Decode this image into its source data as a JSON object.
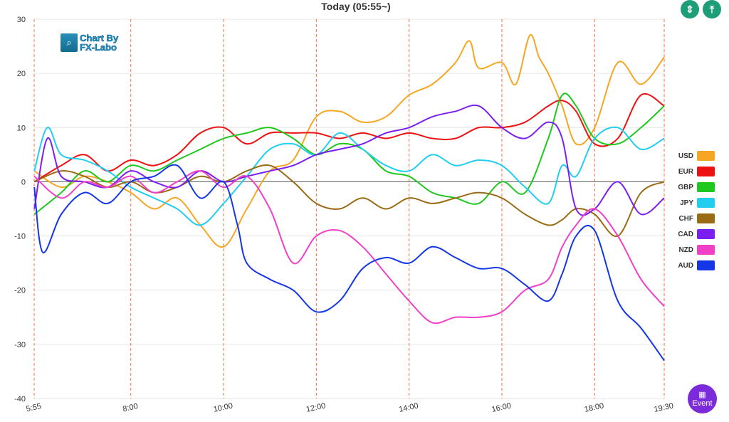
{
  "header": {
    "title": "Today  (05:55~)"
  },
  "logo": {
    "text_line1": "Chart By",
    "text_line2": "FX-Labo"
  },
  "controls": {
    "expand_icon": "expand-vertical-icon",
    "top_icon": "align-top-icon",
    "event_label": "Event",
    "event_icon": "calendar-icon"
  },
  "colors": {
    "USD": "#f5a623",
    "EUR": "#ee1111",
    "GBP": "#1ec81e",
    "JPY": "#22cdf0",
    "CHF": "#9a6b14",
    "CAD": "#7b1ff0",
    "NZD": "#f040c8",
    "AUD": "#1436e6"
  },
  "chart_data": {
    "type": "line",
    "x_ticks": [
      "5:55",
      "8:00",
      "10:00",
      "12:00",
      "14:00",
      "16:00",
      "18:00",
      "19:30"
    ],
    "x_tick_hours": [
      5.9167,
      8,
      10,
      12,
      14,
      16,
      18,
      19.5
    ],
    "xlim": [
      5.9167,
      19.5
    ],
    "ylim": [
      -40,
      30
    ],
    "y_ticks": [
      -40,
      -30,
      -20,
      -10,
      0,
      10,
      20,
      30
    ],
    "legend": [
      "USD",
      "EUR",
      "GBP",
      "JPY",
      "CHF",
      "CAD",
      "NZD",
      "AUD"
    ],
    "legend_position": "right",
    "series": [
      {
        "name": "USD",
        "x": [
          5.92,
          6.5,
          7,
          7.5,
          8,
          8.5,
          9,
          9.5,
          10,
          10.5,
          11,
          11.5,
          12,
          12.5,
          13,
          13.5,
          14,
          14.5,
          15,
          15.3,
          15.5,
          16,
          16.3,
          16.6,
          16.8,
          17,
          17.3,
          17.6,
          18,
          18.5,
          19,
          19.5
        ],
        "values": [
          2,
          -1,
          1,
          0,
          -2,
          -5,
          -3,
          -8,
          -12,
          -5,
          2,
          4,
          12,
          13,
          11,
          12,
          16,
          18,
          22,
          26,
          21,
          22,
          18,
          27,
          23,
          20,
          14,
          7,
          10,
          22,
          18,
          23
        ]
      },
      {
        "name": "EUR",
        "x": [
          5.92,
          6.5,
          7,
          7.5,
          8,
          8.5,
          9,
          9.5,
          10,
          10.5,
          11,
          11.5,
          12,
          12.5,
          13,
          13.5,
          14,
          14.5,
          15,
          15.5,
          16,
          16.5,
          17,
          17.3,
          17.6,
          18,
          18.5,
          19,
          19.5
        ],
        "values": [
          0,
          3,
          5,
          2,
          4,
          3,
          5,
          9,
          10,
          7,
          9,
          9,
          9,
          8,
          9,
          8,
          9,
          8,
          8,
          10,
          10,
          11,
          14,
          15,
          13,
          7,
          8,
          16,
          14
        ]
      },
      {
        "name": "GBP",
        "x": [
          5.92,
          6.5,
          7,
          7.5,
          8,
          8.5,
          9,
          9.5,
          10,
          10.5,
          11,
          11.5,
          12,
          12.5,
          13,
          13.5,
          14,
          14.5,
          15,
          15.5,
          16,
          16.5,
          17,
          17.3,
          17.6,
          18,
          18.5,
          19,
          19.5
        ],
        "values": [
          -6,
          -2,
          2,
          0,
          3,
          2,
          4,
          6,
          8,
          9,
          10,
          8,
          5,
          7,
          6,
          2,
          1,
          -2,
          -3,
          -4,
          0,
          -2,
          8,
          16,
          14,
          8,
          7,
          10,
          14
        ]
      },
      {
        "name": "JPY",
        "x": [
          5.92,
          6.2,
          6.5,
          7,
          7.5,
          8,
          8.5,
          9,
          9.5,
          10,
          10.5,
          11,
          11.5,
          12,
          12.5,
          13,
          13.5,
          14,
          14.5,
          15,
          15.5,
          16,
          16.5,
          17,
          17.3,
          17.6,
          18,
          18.5,
          19,
          19.5
        ],
        "values": [
          2,
          10,
          5,
          4,
          2,
          -1,
          -3,
          -5,
          -8,
          -4,
          1,
          6,
          7,
          5,
          9,
          6,
          3,
          2,
          5,
          3,
          4,
          3,
          -1,
          -4,
          3,
          1,
          8,
          10,
          6,
          8
        ]
      },
      {
        "name": "CHF",
        "x": [
          5.92,
          6.5,
          7,
          7.5,
          8,
          8.5,
          9,
          9.5,
          10,
          10.5,
          11,
          11.5,
          12,
          12.5,
          13,
          13.5,
          14,
          14.5,
          15,
          15.5,
          16,
          16.5,
          17,
          17.3,
          17.6,
          18,
          18.5,
          19,
          19.5
        ],
        "values": [
          0,
          2,
          1,
          -1,
          0,
          -2,
          -1,
          1,
          0,
          2,
          3,
          0,
          -4,
          -5,
          -3,
          -5,
          -3,
          -4,
          -3,
          -2,
          -3,
          -6,
          -8,
          -7,
          -5,
          -6,
          -10,
          -2,
          0
        ]
      },
      {
        "name": "CAD",
        "x": [
          5.92,
          6.2,
          6.5,
          7,
          7.5,
          8,
          8.5,
          9,
          9.5,
          10,
          10.5,
          11,
          11.5,
          12,
          12.5,
          13,
          13.5,
          14,
          14.5,
          15,
          15.5,
          16,
          16.5,
          17,
          17.3,
          17.6,
          18,
          18.5,
          19,
          19.5
        ],
        "values": [
          -5,
          8,
          1,
          0,
          -1,
          2,
          0,
          -1,
          2,
          0,
          1,
          2,
          3,
          5,
          6,
          7,
          9,
          10,
          12,
          13,
          14,
          10,
          8,
          11,
          8,
          -5,
          -5,
          0,
          -6,
          -3
        ]
      },
      {
        "name": "NZD",
        "x": [
          5.92,
          6.5,
          7,
          7.5,
          8,
          8.5,
          9,
          9.5,
          10,
          10.5,
          11,
          11.5,
          12,
          12.5,
          13,
          13.5,
          14,
          14.5,
          15,
          15.5,
          16,
          16.5,
          17,
          17.3,
          17.6,
          18,
          18.5,
          19,
          19.5
        ],
        "values": [
          1,
          -3,
          0,
          -1,
          1,
          -2,
          0,
          2,
          -1,
          1,
          -5,
          -15,
          -10,
          -9,
          -12,
          -17,
          -22,
          -26,
          -25,
          -25,
          -24,
          -20,
          -18,
          -12,
          -8,
          -5,
          -10,
          -18,
          -23
        ]
      },
      {
        "name": "AUD",
        "x": [
          5.92,
          6.1,
          6.5,
          7,
          7.5,
          8,
          8.5,
          9,
          9.5,
          10,
          10.3,
          10.5,
          11,
          11.5,
          12,
          12.5,
          13,
          13.5,
          14,
          14.5,
          15,
          15.5,
          16,
          16.5,
          17,
          17.3,
          17.6,
          18,
          18.5,
          19,
          19.5
        ],
        "values": [
          -1,
          -13,
          -6,
          -2,
          -4,
          0,
          1,
          3,
          -3,
          0,
          -8,
          -15,
          -18,
          -20,
          -24,
          -22,
          -16,
          -14,
          -15,
          -12,
          -14,
          -16,
          -16,
          -19,
          -22,
          -17,
          -10,
          -9,
          -22,
          -27,
          -33
        ]
      }
    ]
  }
}
